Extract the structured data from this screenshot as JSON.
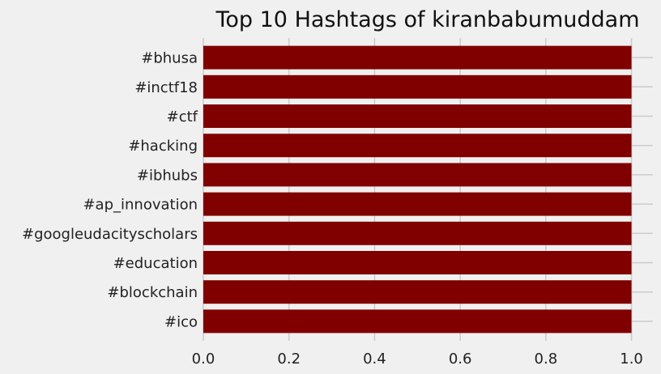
{
  "chart_data": {
    "type": "bar",
    "orientation": "horizontal",
    "title": "Top 10 Hashtags of kiranbabumuddam",
    "xlabel": "",
    "ylabel": "",
    "categories": [
      "#bhusa",
      "#inctf18",
      "#ctf",
      "#hacking",
      "#ibhubs",
      "#ap_innovation",
      "#googleudacityscholars",
      "#education",
      "#blockchain",
      "#ico"
    ],
    "values": [
      1,
      1,
      1,
      1,
      1,
      1,
      1,
      1,
      1,
      1
    ],
    "xlim": [
      0,
      1.05
    ],
    "xticks": [
      "0.0",
      "0.2",
      "0.4",
      "0.6",
      "0.8",
      "1.0"
    ],
    "xtick_values": [
      0,
      0.2,
      0.4,
      0.6,
      0.8,
      1.0
    ],
    "grid": true,
    "bar_color": "#800000",
    "background_color": "#f0f0f0",
    "grid_color": "#cbcbcb"
  }
}
